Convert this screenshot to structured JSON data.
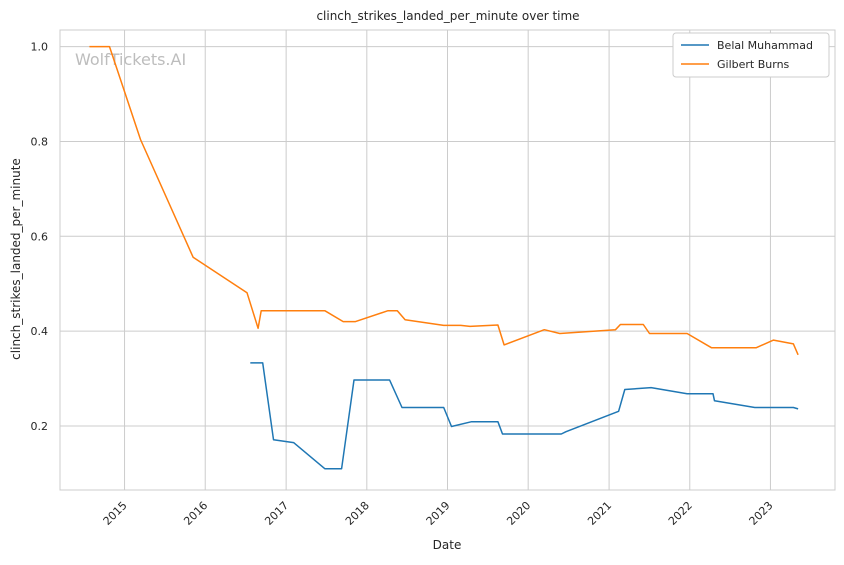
{
  "chart_data": {
    "type": "line",
    "title": "clinch_strikes_landed_per_minute over time",
    "xlabel": "Date",
    "ylabel": "clinch_strikes_landed_per_minute",
    "watermark": "WolfTickets.AI",
    "grid": true,
    "legend_position": "top-right",
    "xlim": [
      "2014-03-15",
      "2023-10-20"
    ],
    "ylim": [
      0.065,
      1.035
    ],
    "x_ticks": [
      "2015",
      "2016",
      "2017",
      "2018",
      "2019",
      "2020",
      "2021",
      "2022",
      "2023"
    ],
    "y_ticks": [
      "0.2",
      "0.4",
      "0.6",
      "0.8",
      "1.0"
    ],
    "colors": {
      "background": "#ffffff",
      "grid": "#cccccc",
      "axes": "#cccccc",
      "text": "#262626"
    },
    "series": [
      {
        "name": "Belal Muhammad",
        "color": "#1f77b4",
        "points": [
          [
            "2016-07-23",
            0.333
          ],
          [
            "2016-09-17",
            0.333
          ],
          [
            "2016-11-05",
            0.171
          ],
          [
            "2017-02-04",
            0.165
          ],
          [
            "2017-06-25",
            0.11
          ],
          [
            "2017-09-09",
            0.11
          ],
          [
            "2017-11-04",
            0.297
          ],
          [
            "2018-04-14",
            0.297
          ],
          [
            "2018-06-09",
            0.239
          ],
          [
            "2018-12-15",
            0.239
          ],
          [
            "2019-01-19",
            0.199
          ],
          [
            "2019-04-20",
            0.209
          ],
          [
            "2019-08-17",
            0.209
          ],
          [
            "2019-09-07",
            0.183
          ],
          [
            "2020-05-30",
            0.183
          ],
          [
            "2020-06-20",
            0.188
          ],
          [
            "2021-02-13",
            0.231
          ],
          [
            "2021-03-13",
            0.277
          ],
          [
            "2021-07-10",
            0.281
          ],
          [
            "2021-12-20",
            0.268
          ],
          [
            "2022-04-16",
            0.268
          ],
          [
            "2022-04-23",
            0.253
          ],
          [
            "2022-10-22",
            0.239
          ],
          [
            "2023-04-15",
            0.239
          ],
          [
            "2023-05-06",
            0.236
          ]
        ]
      },
      {
        "name": "Gilbert Burns",
        "color": "#ff7f0e",
        "points": [
          [
            "2014-07-26",
            1.0
          ],
          [
            "2014-10-25",
            1.0
          ],
          [
            "2015-03-14",
            0.804
          ],
          [
            "2015-11-07",
            0.556
          ],
          [
            "2016-07-08",
            0.481
          ],
          [
            "2016-08-27",
            0.406
          ],
          [
            "2016-09-10",
            0.443
          ],
          [
            "2017-06-25",
            0.443
          ],
          [
            "2017-09-16",
            0.42
          ],
          [
            "2017-11-11",
            0.42
          ],
          [
            "2018-04-07",
            0.443
          ],
          [
            "2018-05-19",
            0.443
          ],
          [
            "2018-06-23",
            0.424
          ],
          [
            "2018-12-15",
            0.412
          ],
          [
            "2019-03-02",
            0.412
          ],
          [
            "2019-04-13",
            0.41
          ],
          [
            "2019-08-17",
            0.413
          ],
          [
            "2019-09-14",
            0.371
          ],
          [
            "2020-03-14",
            0.403
          ],
          [
            "2020-05-23",
            0.395
          ],
          [
            "2021-01-30",
            0.403
          ],
          [
            "2021-02-21",
            0.414
          ],
          [
            "2021-06-05",
            0.414
          ],
          [
            "2021-07-03",
            0.395
          ],
          [
            "2021-12-20",
            0.395
          ],
          [
            "2022-04-09",
            0.365
          ],
          [
            "2022-10-29",
            0.365
          ],
          [
            "2023-01-15",
            0.381
          ],
          [
            "2023-04-15",
            0.373
          ],
          [
            "2023-05-06",
            0.35
          ]
        ]
      }
    ]
  }
}
